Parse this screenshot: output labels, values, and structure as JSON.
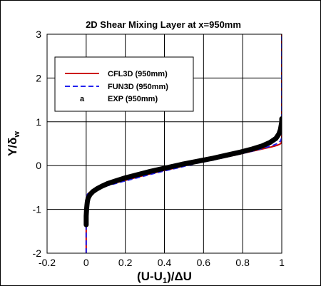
{
  "chart_data": {
    "type": "line",
    "title": "2D Shear Mixing Layer at x=950mm",
    "xlabel": "(U-U1)/ΔU",
    "xlabel_parts": {
      "pre": "(U-U",
      "sub": "1",
      "post": ")/ΔU"
    },
    "ylabel": "Y/δw",
    "ylabel_parts": {
      "pre": "Y/δ",
      "sub": "w"
    },
    "xlim": [
      -0.2,
      1.0
    ],
    "ylim": [
      -2,
      3
    ],
    "xticks": [
      -0.2,
      0,
      0.2,
      0.4,
      0.6,
      0.8,
      1
    ],
    "xtick_labels": [
      "-0.2",
      "0",
      "0.2",
      "0.4",
      "0.6",
      "0.8",
      "1"
    ],
    "yticks": [
      -2,
      -1,
      0,
      1,
      2,
      3
    ],
    "ytick_labels": [
      "-2",
      "-1",
      "0",
      "1",
      "2",
      "3"
    ],
    "grid": true,
    "legend_position": "top-left",
    "series": [
      {
        "name": "CFL3D (950mm)",
        "style": "solid",
        "color": "#cc0000",
        "x": [
          0.0,
          0.0,
          0.0,
          0.002,
          0.006,
          0.015,
          0.03,
          0.05,
          0.08,
          0.12,
          0.17,
          0.23,
          0.3,
          0.38,
          0.46,
          0.54,
          0.62,
          0.7,
          0.77,
          0.83,
          0.88,
          0.92,
          0.95,
          0.975,
          0.99,
          0.997,
          1.0,
          1.0,
          1.0
        ],
        "y": [
          -2.0,
          -1.2,
          -0.85,
          -0.72,
          -0.66,
          -0.62,
          -0.58,
          -0.54,
          -0.49,
          -0.43,
          -0.37,
          -0.3,
          -0.22,
          -0.13,
          -0.05,
          0.04,
          0.11,
          0.18,
          0.25,
          0.31,
          0.36,
          0.4,
          0.43,
          0.46,
          0.49,
          0.51,
          0.6,
          1.5,
          3.0
        ]
      },
      {
        "name": "FUN3D (950mm)",
        "style": "dashed",
        "color": "#2222ee",
        "x": [
          0.0,
          0.0,
          0.0,
          0.003,
          0.008,
          0.02,
          0.04,
          0.07,
          0.1,
          0.14,
          0.19,
          0.25,
          0.32,
          0.4,
          0.48,
          0.56,
          0.64,
          0.71,
          0.78,
          0.84,
          0.89,
          0.93,
          0.96,
          0.98,
          0.993,
          0.999,
          1.0,
          1.0,
          1.0
        ],
        "y": [
          -2.0,
          -1.2,
          -0.82,
          -0.7,
          -0.64,
          -0.6,
          -0.55,
          -0.51,
          -0.47,
          -0.42,
          -0.36,
          -0.29,
          -0.21,
          -0.12,
          -0.04,
          0.05,
          0.12,
          0.19,
          0.26,
          0.32,
          0.38,
          0.43,
          0.47,
          0.51,
          0.56,
          0.62,
          0.75,
          1.5,
          2.95
        ]
      },
      {
        "name": "EXP (950mm)",
        "style": "symbols",
        "color": "#000000",
        "x": [
          0.0,
          0.0,
          0.002,
          0.004,
          0.006,
          0.01,
          0.02,
          0.035,
          0.055,
          0.08,
          0.11,
          0.15,
          0.2,
          0.26,
          0.33,
          0.41,
          0.49,
          0.57,
          0.65,
          0.72,
          0.79,
          0.85,
          0.9,
          0.94,
          0.97,
          0.985,
          0.993,
          0.997,
          1.0,
          1.0
        ],
        "y": [
          -1.35,
          -1.15,
          -1.0,
          -0.9,
          -0.82,
          -0.74,
          -0.66,
          -0.59,
          -0.53,
          -0.47,
          -0.41,
          -0.35,
          -0.28,
          -0.21,
          -0.13,
          -0.05,
          0.03,
          0.1,
          0.17,
          0.24,
          0.31,
          0.38,
          0.45,
          0.53,
          0.62,
          0.72,
          0.82,
          0.92,
          1.0,
          1.07
        ]
      }
    ]
  }
}
